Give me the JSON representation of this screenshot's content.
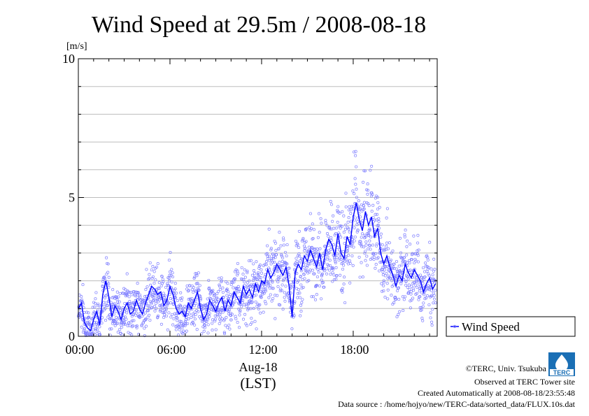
{
  "chart_data": {
    "type": "line",
    "title": "Wind Speed at 29.5m / 2008-08-18",
    "ylabel": "[m/s]",
    "xlabel": "(LST)",
    "date_label": "Aug-18",
    "ylim": [
      0,
      10
    ],
    "xlim": [
      0,
      23.5
    ],
    "y_ticks": [
      {
        "v": 0,
        "label": "0"
      },
      {
        "v": 5,
        "label": "5"
      },
      {
        "v": 10,
        "label": "10"
      }
    ],
    "x_ticks": [
      {
        "v": 0,
        "label": "00:00"
      },
      {
        "v": 6,
        "label": "06:00"
      },
      {
        "v": 12,
        "label": "12:00"
      },
      {
        "v": 18,
        "label": "18:00"
      }
    ],
    "grid": true,
    "legend_position": "right-bottom",
    "series": [
      {
        "name": "Wind Speed",
        "color": "#0000ff",
        "marker_color": "#7f7fff",
        "x": [
          0.0,
          0.2,
          0.4,
          0.6,
          0.8,
          1.0,
          1.2,
          1.4,
          1.6,
          1.8,
          2.0,
          2.2,
          2.4,
          2.6,
          2.8,
          3.0,
          3.2,
          3.4,
          3.6,
          3.8,
          4.0,
          4.2,
          4.4,
          4.6,
          4.8,
          5.0,
          5.2,
          5.4,
          5.6,
          5.8,
          6.0,
          6.2,
          6.4,
          6.6,
          6.8,
          7.0,
          7.2,
          7.4,
          7.6,
          7.8,
          8.0,
          8.2,
          8.4,
          8.6,
          8.8,
          9.0,
          9.2,
          9.4,
          9.6,
          9.8,
          10.0,
          10.2,
          10.4,
          10.6,
          10.8,
          11.0,
          11.2,
          11.4,
          11.6,
          11.8,
          12.0,
          12.2,
          12.4,
          12.6,
          12.8,
          13.0,
          13.2,
          13.4,
          13.6,
          13.8,
          14.0,
          14.2,
          14.4,
          14.6,
          14.8,
          15.0,
          15.2,
          15.4,
          15.6,
          15.8,
          16.0,
          16.2,
          16.4,
          16.6,
          16.8,
          17.0,
          17.2,
          17.4,
          17.6,
          17.8,
          18.0,
          18.2,
          18.4,
          18.6,
          18.8,
          19.0,
          19.2,
          19.4,
          19.6,
          19.8,
          20.0,
          20.2,
          20.4,
          20.6,
          20.8,
          21.0,
          21.2,
          21.4,
          21.6,
          21.8,
          22.0,
          22.2,
          22.4,
          22.6,
          22.8,
          23.0,
          23.2,
          23.4
        ],
        "values": [
          1.0,
          1.2,
          0.5,
          0.3,
          0.2,
          0.6,
          0.9,
          0.4,
          1.5,
          2.0,
          1.4,
          0.7,
          1.1,
          0.9,
          0.6,
          1.0,
          1.2,
          0.8,
          0.9,
          1.3,
          1.0,
          0.8,
          1.2,
          1.5,
          1.8,
          1.7,
          1.5,
          1.6,
          1.1,
          1.3,
          1.8,
          1.5,
          1.0,
          0.8,
          0.9,
          0.7,
          1.2,
          1.0,
          1.3,
          1.6,
          1.0,
          0.6,
          0.8,
          1.3,
          1.1,
          0.9,
          1.2,
          1.4,
          0.9,
          1.3,
          1.1,
          1.6,
          1.4,
          1.2,
          1.8,
          1.5,
          1.7,
          1.4,
          1.9,
          1.6,
          2.0,
          1.9,
          2.4,
          2.1,
          2.3,
          2.6,
          2.4,
          2.2,
          2.5,
          1.8,
          0.7,
          2.3,
          2.6,
          2.4,
          2.9,
          2.7,
          3.1,
          2.8,
          2.5,
          3.0,
          2.4,
          3.1,
          3.5,
          3.3,
          2.9,
          3.7,
          3.0,
          2.8,
          3.6,
          3.3,
          4.3,
          4.8,
          4.2,
          3.8,
          4.5,
          4.0,
          4.3,
          3.6,
          3.9,
          3.0,
          2.6,
          2.9,
          2.5,
          2.2,
          1.8,
          2.2,
          2.0,
          2.6,
          2.3,
          2.1,
          2.4,
          2.2,
          2.0,
          1.6,
          1.9,
          2.1,
          1.7,
          1.9
        ]
      }
    ]
  },
  "credits": {
    "copyright": "©TERC, Univ. Tsukuba",
    "observed": "Observed at TERC Tower site",
    "created": "Created Automatically at 2008-08-18/23:55:48",
    "source": "Data source : /home/hojyo/new/TERC-data/sorted_data/FLUX.10s.dat"
  },
  "logo": {
    "text": "TERC",
    "color": "#1a6fb5"
  }
}
